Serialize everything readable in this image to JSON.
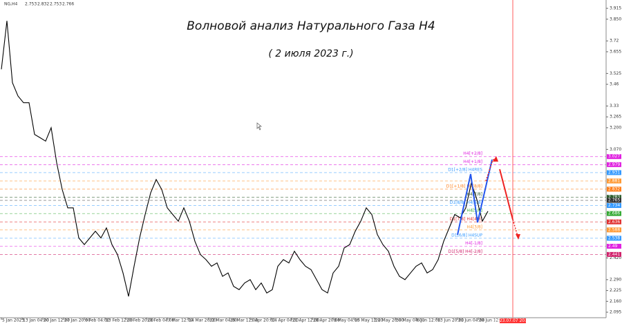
{
  "chart_data": {
    "type": "line",
    "title": "Волновой анализ Натурального Газа H4",
    "subtitle": "( 2 июля 2023 г.)",
    "symbol": "NG,H4",
    "ohlc": [
      2.753,
      2.832,
      2.753,
      2.766
    ],
    "series": [
      {
        "color": "#000000",
        "values": [
          3.55,
          3.84,
          3.47,
          3.39,
          3.35,
          3.35,
          3.16,
          3.14,
          3.12,
          3.2,
          2.99,
          2.83,
          2.72,
          2.72,
          2.54,
          2.5,
          2.54,
          2.58,
          2.54,
          2.6,
          2.5,
          2.44,
          2.33,
          2.19,
          2.37,
          2.54,
          2.68,
          2.81,
          2.89,
          2.83,
          2.72,
          2.68,
          2.64,
          2.72,
          2.64,
          2.52,
          2.44,
          2.41,
          2.37,
          2.39,
          2.31,
          2.33,
          2.25,
          2.23,
          2.27,
          2.29,
          2.23,
          2.27,
          2.21,
          2.23,
          2.37,
          2.41,
          2.39,
          2.46,
          2.41,
          2.37,
          2.35,
          2.29,
          2.23,
          2.21,
          2.33,
          2.37,
          2.48,
          2.5,
          2.58,
          2.64,
          2.72,
          2.68,
          2.56,
          2.5,
          2.46,
          2.37,
          2.31,
          2.29,
          2.33,
          2.37,
          2.39,
          2.33,
          2.35,
          2.41,
          2.52,
          2.6,
          2.68,
          2.66,
          2.72,
          2.87,
          2.77,
          2.64,
          2.7
        ]
      }
    ],
    "xlim": [
      -0.25,
      109.375
    ],
    "xticks": [
      {
        "value": 0,
        "label": "5 Jan 2023"
      },
      {
        "value": 3.75,
        "label": "13 Jan 04:00"
      },
      {
        "value": 7.5,
        "label": "20 Jan 12:00"
      },
      {
        "value": 11.25,
        "label": "27 Jan 20:00"
      },
      {
        "value": 15,
        "label": "6 Feb 04:00"
      },
      {
        "value": 18.75,
        "label": "13 Feb 12:00"
      },
      {
        "value": 22.5,
        "label": "20 Feb 20:00"
      },
      {
        "value": 26.25,
        "label": "28 Feb 04:00"
      },
      {
        "value": 30,
        "label": "7 Mar 12:00"
      },
      {
        "value": 33.75,
        "label": "14 Mar 20:00"
      },
      {
        "value": 37.5,
        "label": "22 Mar 04:00"
      },
      {
        "value": 41.25,
        "label": "29 Mar 12:00"
      },
      {
        "value": 45,
        "label": "5 Apr 20:00"
      },
      {
        "value": 48.75,
        "label": "14 Apr 04:00"
      },
      {
        "value": 52.5,
        "label": "21 Apr 12:00"
      },
      {
        "value": 56.25,
        "label": "28 Apr 20:00"
      },
      {
        "value": 60,
        "label": "8 May 04:00"
      },
      {
        "value": 63.75,
        "label": "15 May 12:00"
      },
      {
        "value": 67.5,
        "label": "22 May 20:00"
      },
      {
        "value": 71.25,
        "label": "30 May 04:00"
      },
      {
        "value": 75,
        "label": "6 Jun 12:00"
      },
      {
        "value": 78.75,
        "label": "13 Jun 20:00"
      },
      {
        "value": 82.5,
        "label": "21 Jun 04:00"
      },
      {
        "value": 86.25,
        "label": "28 Jun 12:00"
      }
    ],
    "future_line": {
      "value": 92.5,
      "label": "2023.07.07 20:00",
      "color": "#ff3333"
    },
    "ylim": [
      2.062,
      3.965
    ],
    "yticks": [
      3.915,
      {
        "value": 3.85,
        "label": "3.850"
      },
      3.72,
      3.655,
      3.525,
      3.46,
      3.33,
      3.265,
      {
        "value": 3.2,
        "label": "3.200"
      },
      {
        "value": 3.07,
        "label": "3.070"
      },
      {
        "value": 2.42,
        "label": "2.420"
      },
      {
        "value": 2.29,
        "label": "2.290"
      },
      2.225,
      {
        "value": 2.16,
        "label": "2.160"
      },
      2.095
    ],
    "levels": [
      {
        "value": 3.027,
        "name": "H4[+2/8]",
        "color": "#e020e0"
      },
      {
        "value": 2.979,
        "name": "H4[+1/8]",
        "color": "#e020e0"
      },
      {
        "value": 2.931,
        "name": "D1[+2/8] H4RES",
        "color": "#3399ff"
      },
      {
        "value": 2.881,
        "color": "#ff9933"
      },
      {
        "value": 2.832,
        "name": "D1[+1/8] H4[8/8]",
        "color": "#ff7f1a"
      },
      {
        "value": 2.783,
        "name": "H4[7/8]",
        "color": "#2e5e2e"
      },
      {
        "value": 2.765,
        "color": "#333333"
      },
      {
        "value": 2.734,
        "name": "D1[8/8] H4[6/8]",
        "color": "#3399ff"
      },
      {
        "value": 2.686,
        "name": "H4[5/8]",
        "color": "#33aa33"
      },
      {
        "value": 2.636,
        "name": "D1[7/8] H4[4/8]",
        "color": "#e03030"
      },
      {
        "value": 2.588,
        "name": "H4[3/8]",
        "color": "#ff9933"
      },
      {
        "value": 2.538,
        "name": "D1[6/8] H4SUP",
        "color": "#3399ff"
      },
      {
        "value": 2.49,
        "name": "H4[-1/8]",
        "color": "#e020e0"
      },
      {
        "value": 2.441,
        "name": "D1[5/8] H4[-2/8]",
        "color": "#d0206a"
      }
    ]
  }
}
